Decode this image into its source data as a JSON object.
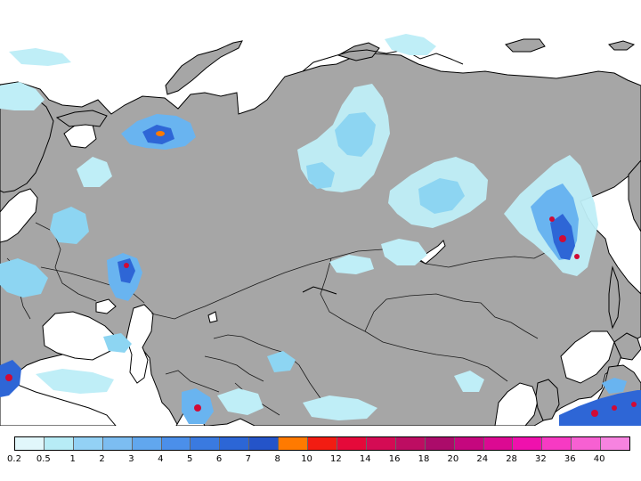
{
  "colors": {
    "land": "#a6a6a6",
    "ocean": "#ffffff",
    "coastline": "#000000",
    "border": "#1a1a1a",
    "precip_light": "#bfeef7",
    "precip_mid": "#69b4f0",
    "precip_heavy": "#2e66d6",
    "precip_extreme": "#d10a35"
  },
  "legend": {
    "labels": [
      "0.2",
      "0.5",
      "1",
      "2",
      "3",
      "4",
      "5",
      "6",
      "7",
      "8",
      "10",
      "12",
      "14",
      "16",
      "18",
      "20",
      "24",
      "28",
      "32",
      "36",
      "40"
    ],
    "colors": [
      "#e1f7fb",
      "#b7ecf6",
      "#93d1f5",
      "#7cbdf1",
      "#61a7ee",
      "#4b8fea",
      "#3a7ae0",
      "#2c66d6",
      "#2454c9",
      "#ff7a00",
      "#f21c12",
      "#e5093a",
      "#d40b54",
      "#bd0d62",
      "#ab0b6a",
      "#c5077e",
      "#dc0992",
      "#ef11ad",
      "#f73ac3",
      "#f760d2",
      "#f783e0"
    ]
  }
}
